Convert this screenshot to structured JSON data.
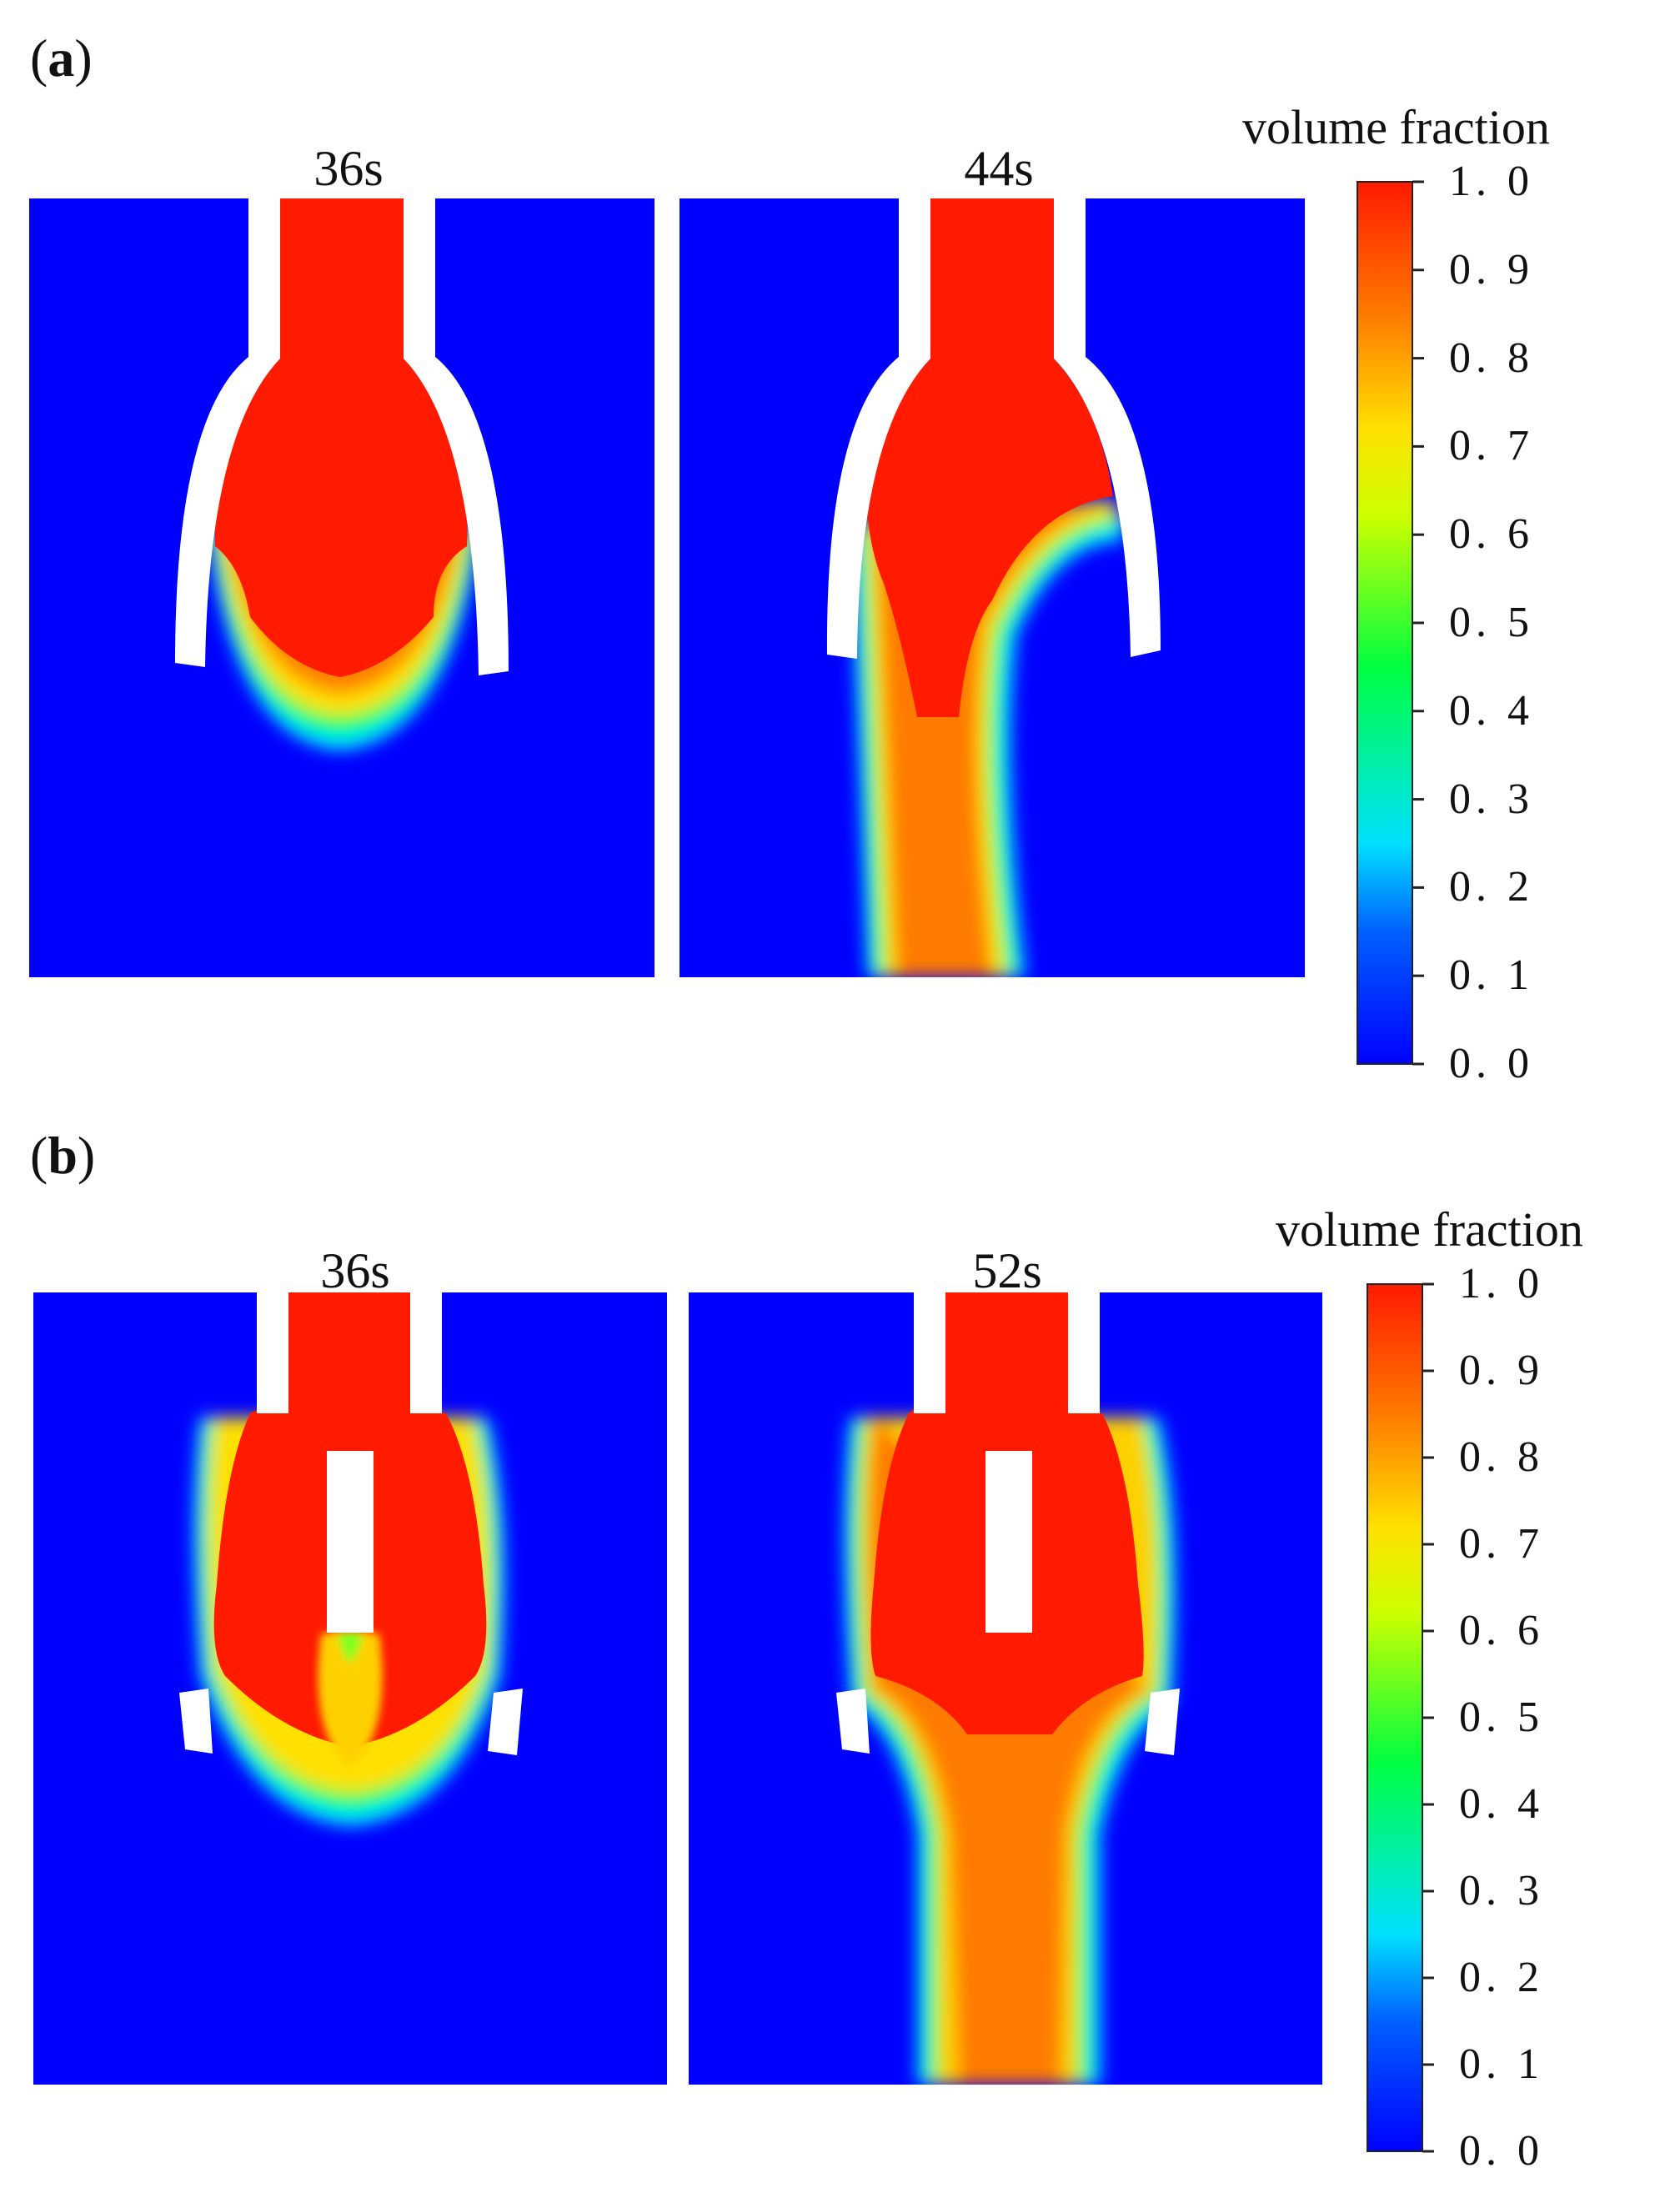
{
  "figure": {
    "panels": [
      {
        "letter": "a",
        "snapshots": [
          {
            "time": "36s"
          },
          {
            "time": "44s"
          }
        ],
        "colorbar": {
          "title": "volume fraction",
          "ticks": [
            "1. 0",
            "0. 9",
            "0. 8",
            "0. 7",
            "0. 6",
            "0. 5",
            "0. 4",
            "0. 3",
            "0. 2",
            "0. 1",
            "0. 0"
          ]
        }
      },
      {
        "letter": "b",
        "snapshots": [
          {
            "time": "36s"
          },
          {
            "time": "52s"
          }
        ],
        "colorbar": {
          "title": "volume fraction",
          "ticks": [
            "1. 0",
            "0. 9",
            "0. 8",
            "0. 7",
            "0. 6",
            "0. 5",
            "0. 4",
            "0. 3",
            "0. 2",
            "0. 1",
            "0. 0"
          ]
        }
      }
    ],
    "colors": {
      "background_fluid": "#0000ff",
      "jet": "#ff1a00",
      "nozzle": "#ffffff",
      "colormap": [
        "#0000ff",
        "#00aaff",
        "#00ffcc",
        "#00ff33",
        "#ccff00",
        "#ffdd00",
        "#ff7700",
        "#ff1a00"
      ]
    }
  }
}
